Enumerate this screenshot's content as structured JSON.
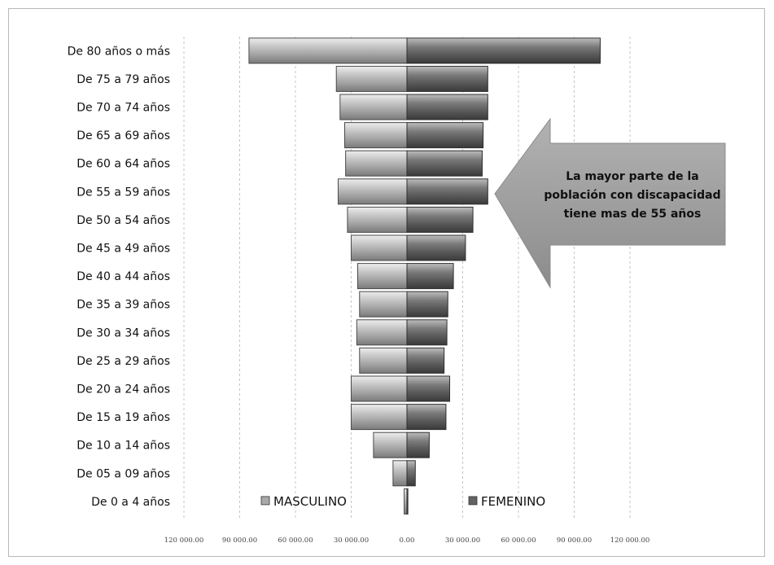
{
  "chart_data": {
    "type": "bar",
    "orientation": "horizontal-diverging",
    "categories": [
      "De 80 años o más",
      "De 75 a 79 años",
      "De 70 a 74 años",
      "De 65 a 69 años",
      "De 60 a 64 años",
      "De 55 a 59 años",
      "De 50 a 54 años",
      "De 45 a 49 años",
      "De 40 a 44 años",
      "De 35 a 39 años",
      "De 30 a 34 años",
      "De 25 a 29 años",
      "De 20 a 24 años",
      "De 15 a 19 años",
      "De 10 a 14 años",
      "De 05 a 09 años",
      "De 0 a 4 años"
    ],
    "series": [
      {
        "name": "MASCULINO",
        "color": "#a9a9a9",
        "values": [
          85000,
          38000,
          36000,
          33500,
          33000,
          37000,
          32000,
          30000,
          26500,
          25500,
          27000,
          25500,
          30000,
          30000,
          18000,
          7500,
          1500
        ]
      },
      {
        "name": "FEMENINO",
        "color": "#636363",
        "values": [
          104000,
          43500,
          43500,
          41000,
          40500,
          43500,
          35500,
          31500,
          25000,
          22000,
          21500,
          20000,
          23000,
          21000,
          12000,
          4500,
          500
        ]
      }
    ],
    "xaxis": {
      "range": [
        -120000,
        120000
      ],
      "ticks": [
        -120000,
        -90000,
        -60000,
        -30000,
        0,
        30000,
        60000,
        90000,
        120000
      ],
      "tick_labels": [
        "120 000.00",
        "90 000.00",
        "60 000.00",
        "30 000.00",
        "0.00",
        "30 000.00",
        "60 000.00",
        "90 000.00",
        "120 000.00"
      ]
    },
    "grid": "vertical-dashed",
    "legend": {
      "placement": "bottom-inside",
      "items": [
        "MASCULINO",
        "FEMENINO"
      ]
    },
    "annotation": {
      "type": "left-arrow-callout",
      "lines": [
        "La mayor parte de la",
        "población con discapacidad",
        "tiene mas de 55 años"
      ],
      "color": "#9e9e9e"
    },
    "title": "",
    "xlabel": "",
    "ylabel": ""
  }
}
